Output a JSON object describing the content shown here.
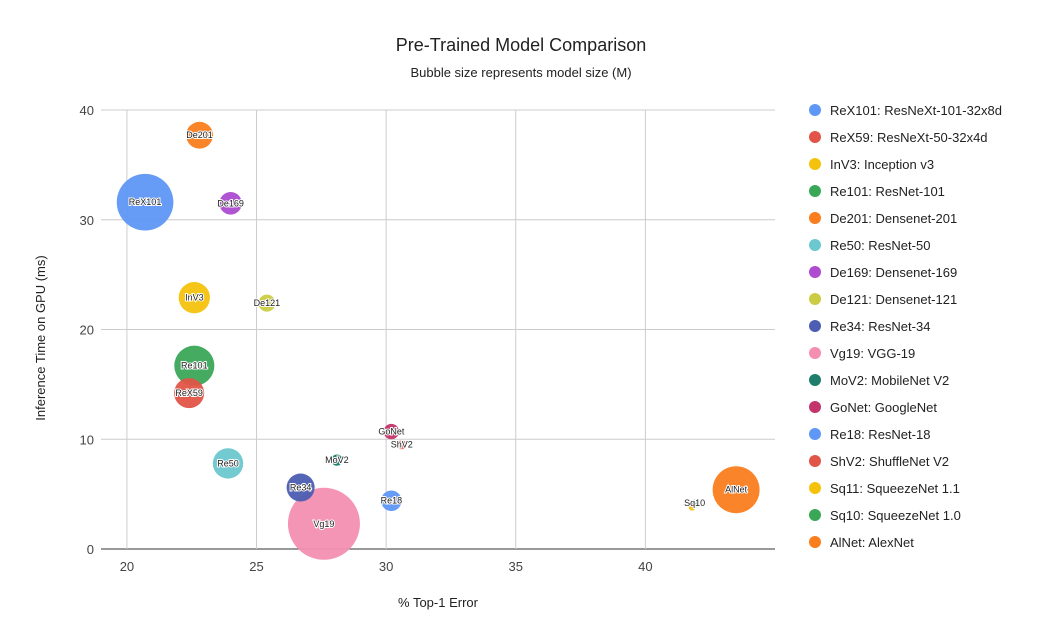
{
  "chart_data": {
    "type": "scatter",
    "title": "Pre-Trained Model Comparison",
    "subtitle": "Bubble size represents model size (M)",
    "xlabel": "% Top-1 Error",
    "ylabel": "Inference Time on GPU (ms)",
    "xlim": [
      19,
      45
    ],
    "ylim": [
      0,
      40
    ],
    "x_ticks": [
      20,
      25,
      30,
      35,
      40
    ],
    "y_ticks": [
      0,
      10,
      20,
      30,
      40
    ],
    "grid": true,
    "legend_position": "right",
    "series": [
      {
        "label": "ReX101",
        "name": "ReX101: ResNeXt-101-32x8d",
        "color": "#5e97f6",
        "x": 20.7,
        "y": 31.6,
        "size": 88.8
      },
      {
        "label": "ReX59",
        "name": "ReX59: ResNeXt-50-32x4d",
        "color": "#e25447",
        "x": 22.4,
        "y": 14.2,
        "size": 25.0
      },
      {
        "label": "InV3",
        "name": "InV3: Inception v3",
        "color": "#f4c20d",
        "x": 22.6,
        "y": 22.9,
        "size": 27.2
      },
      {
        "label": "Re101",
        "name": "Re101: ResNet-101",
        "color": "#3aa757",
        "x": 22.6,
        "y": 16.7,
        "size": 44.5
      },
      {
        "label": "De201",
        "name": "De201: Densenet-201",
        "color": "#fa7d1e",
        "x": 22.8,
        "y": 37.7,
        "size": 20.0
      },
      {
        "label": "Re50",
        "name": "Re50: ResNet-50",
        "color": "#6cc8cf",
        "x": 23.9,
        "y": 7.8,
        "size": 25.6
      },
      {
        "label": "De169",
        "name": "De169: Densenet-169",
        "color": "#ad4bd1",
        "x": 24.0,
        "y": 31.5,
        "size": 14.1
      },
      {
        "label": "De121",
        "name": "De121: Densenet-121",
        "color": "#cccc44",
        "x": 25.4,
        "y": 22.4,
        "size": 8.0
      },
      {
        "label": "Re34",
        "name": "Re34: ResNet-34",
        "color": "#4c5db2",
        "x": 26.7,
        "y": 5.6,
        "size": 21.8
      },
      {
        "label": "Vg19",
        "name": "Vg19: VGG-19",
        "color": "#f48fb1",
        "x": 27.6,
        "y": 2.3,
        "size": 143.7
      },
      {
        "label": "MoV2",
        "name": "MoV2: MobileNet V2",
        "color": "#1e7d6b",
        "x": 28.1,
        "y": 8.1,
        "size": 3.5
      },
      {
        "label": "GoNet",
        "name": "GoNet: GoogleNet",
        "color": "#c4346c",
        "x": 30.2,
        "y": 10.7,
        "size": 6.6
      },
      {
        "label": "Re18",
        "name": "Re18: ResNet-18",
        "color": "#5e97f6",
        "x": 30.2,
        "y": 4.4,
        "size": 11.7
      },
      {
        "label": "ShV2",
        "name": "ShV2: ShuffleNet V2",
        "color": "#e25447",
        "x": 30.6,
        "y": 9.5,
        "size": 2.3
      },
      {
        "label": "Sq11",
        "name": "Sq11: SqueezeNet 1.1",
        "color": "#f4c20d",
        "x": 41.8,
        "y": 3.8,
        "size": 1.2
      },
      {
        "label": "Sq10",
        "name": "Sq10: SqueezeNet 1.0",
        "color": "#3aa757",
        "x": 41.9,
        "y": 4.2,
        "size": 1.2
      },
      {
        "label": "AlNet",
        "name": "AlNet: AlexNet",
        "color": "#fa7d1e",
        "x": 43.5,
        "y": 5.4,
        "size": 61.1
      }
    ]
  }
}
